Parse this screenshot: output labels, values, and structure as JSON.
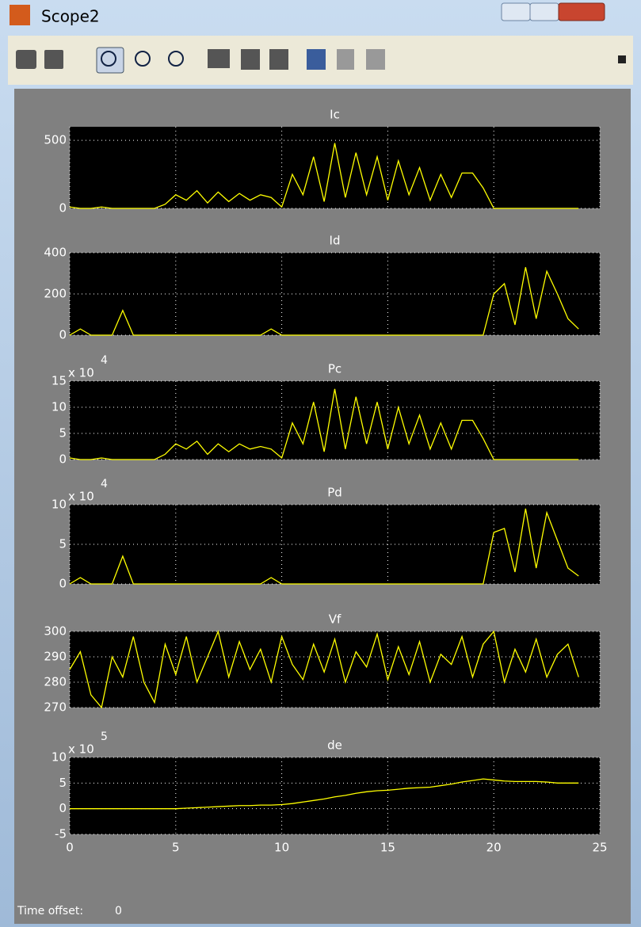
{
  "window": {
    "title": "Scope2"
  },
  "footer": {
    "label": "Time offset:",
    "value": 0
  },
  "chart_data": [
    {
      "type": "line",
      "title": "Ic",
      "color": "#ffff00",
      "grid": true,
      "xlim": [
        0,
        25
      ],
      "xticks": [
        0,
        5,
        10,
        15,
        20,
        25
      ],
      "ylim": [
        0,
        600
      ],
      "yticks": [
        0,
        500
      ],
      "x": [
        0,
        0.5,
        1,
        1.5,
        2,
        2.5,
        3,
        3.5,
        4,
        4.5,
        5,
        5.5,
        6,
        6.5,
        7,
        7.5,
        8,
        8.5,
        9,
        9.5,
        10,
        10.5,
        11,
        11.5,
        12,
        12.5,
        13,
        13.5,
        14,
        14.5,
        15,
        15.5,
        16,
        16.5,
        17,
        17.5,
        18,
        18.5,
        19,
        19.5,
        20,
        20.5,
        21,
        21.5,
        22,
        22.5,
        23,
        23.5,
        24
      ],
      "values": [
        10,
        0,
        0,
        10,
        0,
        0,
        0,
        0,
        0,
        30,
        100,
        60,
        130,
        40,
        120,
        50,
        110,
        60,
        100,
        80,
        10,
        250,
        100,
        380,
        50,
        480,
        80,
        410,
        100,
        380,
        60,
        350,
        100,
        300,
        60,
        250,
        80,
        260,
        260,
        150,
        0,
        0,
        0,
        0,
        0,
        0,
        0,
        0,
        0
      ]
    },
    {
      "type": "line",
      "title": "Id",
      "color": "#ffff00",
      "grid": true,
      "xlim": [
        0,
        25
      ],
      "xticks": [
        0,
        5,
        10,
        15,
        20,
        25
      ],
      "ylim": [
        0,
        400
      ],
      "yticks": [
        0,
        200,
        400
      ],
      "x": [
        0,
        0.5,
        1,
        1.5,
        2,
        2.5,
        3,
        3.5,
        4,
        4.5,
        5,
        5.5,
        6,
        6.5,
        7,
        7.5,
        8,
        8.5,
        9,
        9.5,
        10,
        10.5,
        11,
        11.5,
        12,
        12.5,
        13,
        13.5,
        14,
        14.5,
        15,
        15.5,
        16,
        16.5,
        17,
        17.5,
        18,
        18.5,
        19,
        19.5,
        20,
        20.5,
        21,
        21.5,
        22,
        22.5,
        23,
        23.5,
        24
      ],
      "values": [
        0,
        30,
        0,
        0,
        0,
        120,
        0,
        0,
        0,
        0,
        0,
        0,
        0,
        0,
        0,
        0,
        0,
        0,
        0,
        30,
        0,
        0,
        0,
        0,
        0,
        0,
        0,
        0,
        0,
        0,
        0,
        0,
        0,
        0,
        0,
        0,
        0,
        0,
        0,
        0,
        200,
        250,
        50,
        330,
        80,
        310,
        200,
        80,
        30
      ]
    },
    {
      "type": "line",
      "title": "Pc",
      "y_multiplier": "x 10",
      "y_exponent": 4,
      "color": "#ffff00",
      "grid": true,
      "xlim": [
        0,
        25
      ],
      "xticks": [
        0,
        5,
        10,
        15,
        20,
        25
      ],
      "ylim": [
        0,
        15
      ],
      "yticks": [
        0,
        5,
        10,
        15
      ],
      "x": [
        0,
        0.5,
        1,
        1.5,
        2,
        2.5,
        3,
        3.5,
        4,
        4.5,
        5,
        5.5,
        6,
        6.5,
        7,
        7.5,
        8,
        8.5,
        9,
        9.5,
        10,
        10.5,
        11,
        11.5,
        12,
        12.5,
        13,
        13.5,
        14,
        14.5,
        15,
        15.5,
        16,
        16.5,
        17,
        17.5,
        18,
        18.5,
        19,
        19.5,
        20,
        20.5,
        21,
        21.5,
        22,
        22.5,
        23,
        23.5,
        24
      ],
      "values": [
        0.3,
        0,
        0,
        0.3,
        0,
        0,
        0,
        0,
        0,
        1,
        3,
        2,
        3.5,
        1,
        3,
        1.5,
        3,
        2,
        2.5,
        2,
        0.3,
        7,
        3,
        11,
        1.5,
        13.5,
        2,
        12,
        3,
        11,
        2,
        10,
        3,
        8.5,
        2,
        7,
        2,
        7.5,
        7.5,
        4,
        0,
        0,
        0,
        0,
        0,
        0,
        0,
        0,
        0
      ]
    },
    {
      "type": "line",
      "title": "Pd",
      "y_multiplier": "x 10",
      "y_exponent": 4,
      "color": "#ffff00",
      "grid": true,
      "xlim": [
        0,
        25
      ],
      "xticks": [
        0,
        5,
        10,
        15,
        20,
        25
      ],
      "ylim": [
        0,
        10
      ],
      "yticks": [
        0,
        5,
        10
      ],
      "x": [
        0,
        0.5,
        1,
        1.5,
        2,
        2.5,
        3,
        3.5,
        4,
        4.5,
        5,
        5.5,
        6,
        6.5,
        7,
        7.5,
        8,
        8.5,
        9,
        9.5,
        10,
        10.5,
        11,
        11.5,
        12,
        12.5,
        13,
        13.5,
        14,
        14.5,
        15,
        15.5,
        16,
        16.5,
        17,
        17.5,
        18,
        18.5,
        19,
        19.5,
        20,
        20.5,
        21,
        21.5,
        22,
        22.5,
        23,
        23.5,
        24
      ],
      "values": [
        0,
        0.8,
        0,
        0,
        0,
        3.5,
        0,
        0,
        0,
        0,
        0,
        0,
        0,
        0,
        0,
        0,
        0,
        0,
        0,
        0.8,
        0,
        0,
        0,
        0,
        0,
        0,
        0,
        0,
        0,
        0,
        0,
        0,
        0,
        0,
        0,
        0,
        0,
        0,
        0,
        0,
        6.5,
        7,
        1.5,
        9.5,
        2,
        9,
        5.5,
        2,
        1
      ]
    },
    {
      "type": "line",
      "title": "Vf",
      "color": "#ffff00",
      "grid": true,
      "xlim": [
        0,
        25
      ],
      "xticks": [
        0,
        5,
        10,
        15,
        20,
        25
      ],
      "ylim": [
        270,
        300
      ],
      "yticks": [
        270,
        280,
        290,
        300
      ],
      "x": [
        0,
        0.5,
        1,
        1.5,
        2,
        2.5,
        3,
        3.5,
        4,
        4.5,
        5,
        5.5,
        6,
        6.5,
        7,
        7.5,
        8,
        8.5,
        9,
        9.5,
        10,
        10.5,
        11,
        11.5,
        12,
        12.5,
        13,
        13.5,
        14,
        14.5,
        15,
        15.5,
        16,
        16.5,
        17,
        17.5,
        18,
        18.5,
        19,
        19.5,
        20,
        20.5,
        21,
        21.5,
        22,
        22.5,
        23,
        23.5,
        24
      ],
      "values": [
        285,
        292,
        275,
        270,
        290,
        282,
        298,
        280,
        272,
        295,
        283,
        298,
        280,
        290,
        300,
        282,
        296,
        285,
        293,
        280,
        298,
        287,
        281,
        295,
        284,
        297,
        280,
        292,
        286,
        299,
        281,
        294,
        283,
        296,
        280,
        291,
        287,
        298,
        282,
        295,
        300,
        280,
        293,
        284,
        297,
        282,
        291,
        295,
        282
      ]
    },
    {
      "type": "line",
      "title": "de",
      "y_multiplier": "x 10",
      "y_exponent": 5,
      "color": "#ffff00",
      "grid": true,
      "show_xtick_labels": true,
      "xlim": [
        0,
        25
      ],
      "xticks": [
        0,
        5,
        10,
        15,
        20,
        25
      ],
      "ylim": [
        -5,
        10
      ],
      "yticks": [
        -5,
        0,
        5,
        10
      ],
      "x": [
        0,
        0.5,
        1,
        1.5,
        2,
        2.5,
        3,
        3.5,
        4,
        4.5,
        5,
        5.5,
        6,
        6.5,
        7,
        7.5,
        8,
        8.5,
        9,
        9.5,
        10,
        10.5,
        11,
        11.5,
        12,
        12.5,
        13,
        13.5,
        14,
        14.5,
        15,
        15.5,
        16,
        16.5,
        17,
        17.5,
        18,
        18.5,
        19,
        19.5,
        20,
        20.5,
        21,
        21.5,
        22,
        22.5,
        23,
        23.5,
        24
      ],
      "values": [
        0,
        0,
        0,
        0,
        0,
        0,
        0,
        0,
        0,
        0,
        0,
        0.1,
        0.2,
        0.3,
        0.4,
        0.5,
        0.6,
        0.6,
        0.7,
        0.7,
        0.8,
        1,
        1.3,
        1.6,
        1.9,
        2.3,
        2.6,
        3,
        3.3,
        3.5,
        3.6,
        3.8,
        4,
        4.1,
        4.2,
        4.5,
        4.8,
        5.2,
        5.5,
        5.8,
        5.6,
        5.4,
        5.3,
        5.3,
        5.3,
        5.2,
        5,
        5,
        5
      ]
    }
  ]
}
